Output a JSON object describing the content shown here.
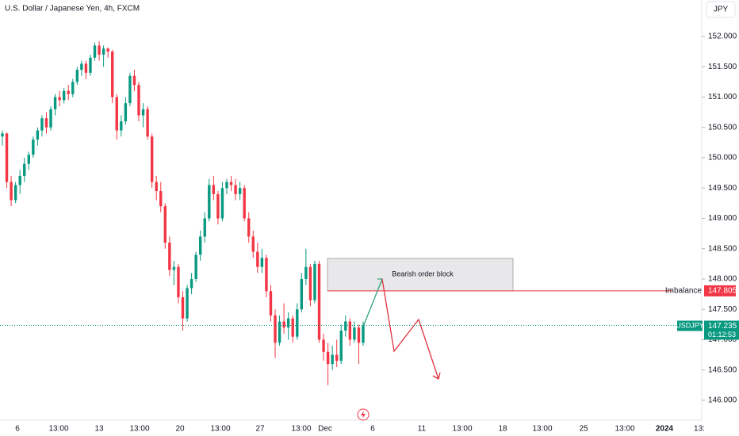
{
  "chart_data": {
    "type": "candlestick",
    "title": "U.S. Dollar / Japanese Yen, 4h, FXCM",
    "currency": "JPY",
    "symbol": "USDJPY",
    "up_color": "#089981",
    "down_color": "#f23645",
    "ylim": [
      145.673,
      152.601
    ],
    "yticks": [
      {
        "value": 146,
        "label": "146.000"
      },
      {
        "value": 146.5,
        "label": "146.500"
      },
      {
        "value": 147,
        "label": "147.000"
      },
      {
        "value": 147.5,
        "label": "147.500"
      },
      {
        "value": 148,
        "label": "148.000"
      },
      {
        "value": 148.5,
        "label": "148.500"
      },
      {
        "value": 149,
        "label": "149.000"
      },
      {
        "value": 149.5,
        "label": "149.500"
      },
      {
        "value": 150,
        "label": "150.000"
      },
      {
        "value": 150.5,
        "label": "150.500"
      },
      {
        "value": 151,
        "label": "151.000"
      },
      {
        "value": 151.5,
        "label": "151.500"
      },
      {
        "value": 152,
        "label": "152.000"
      }
    ],
    "xticks": [
      "6",
      "13:00",
      "13",
      "13:00",
      "20",
      "13:00",
      "27",
      "13:00",
      "Dec",
      "6",
      "11",
      "13:00",
      "18",
      "13:00",
      "25",
      "13:00",
      "2024",
      "13:"
    ],
    "candles": [
      [
        150.35,
        150.45,
        150.2,
        150.4
      ],
      [
        150.4,
        150.42,
        149.5,
        149.6
      ],
      [
        149.6,
        149.7,
        149.2,
        149.3
      ],
      [
        149.3,
        149.6,
        149.25,
        149.55
      ],
      [
        149.55,
        149.8,
        149.4,
        149.7
      ],
      [
        149.7,
        150.0,
        149.6,
        149.9
      ],
      [
        149.9,
        150.1,
        149.8,
        150.05
      ],
      [
        150.05,
        150.35,
        150.0,
        150.3
      ],
      [
        150.3,
        150.5,
        150.2,
        150.45
      ],
      [
        150.45,
        150.7,
        150.35,
        150.65
      ],
      [
        150.65,
        150.75,
        150.4,
        150.5
      ],
      [
        150.5,
        150.85,
        150.45,
        150.8
      ],
      [
        150.8,
        151.05,
        150.7,
        151.0
      ],
      [
        151.0,
        151.1,
        150.85,
        150.95
      ],
      [
        150.95,
        151.15,
        150.9,
        151.1
      ],
      [
        151.1,
        151.2,
        150.95,
        151.05
      ],
      [
        151.05,
        151.3,
        151.0,
        151.25
      ],
      [
        151.25,
        151.5,
        151.2,
        151.45
      ],
      [
        151.45,
        151.6,
        151.35,
        151.55
      ],
      [
        151.55,
        151.6,
        151.3,
        151.4
      ],
      [
        151.4,
        151.7,
        151.35,
        151.65
      ],
      [
        151.65,
        151.9,
        151.6,
        151.85
      ],
      [
        151.85,
        151.92,
        151.6,
        151.7
      ],
      [
        151.7,
        151.85,
        151.5,
        151.8
      ],
      [
        151.8,
        151.82,
        151.65,
        151.75
      ],
      [
        151.75,
        151.78,
        150.9,
        151.0
      ],
      [
        151.0,
        151.05,
        150.3,
        150.45
      ],
      [
        150.45,
        150.7,
        150.35,
        150.6
      ],
      [
        150.6,
        151.0,
        150.55,
        150.9
      ],
      [
        150.9,
        151.4,
        150.85,
        151.35
      ],
      [
        151.35,
        151.45,
        151.1,
        151.2
      ],
      [
        151.2,
        151.25,
        150.6,
        150.7
      ],
      [
        150.7,
        150.9,
        150.5,
        150.8
      ],
      [
        150.8,
        150.85,
        150.3,
        150.35
      ],
      [
        150.35,
        150.4,
        149.5,
        149.6
      ],
      [
        149.6,
        149.7,
        149.3,
        149.45
      ],
      [
        149.45,
        149.6,
        149.1,
        149.2
      ],
      [
        149.2,
        149.25,
        148.5,
        148.6
      ],
      [
        148.6,
        148.7,
        148.05,
        148.15
      ],
      [
        148.15,
        148.3,
        147.9,
        148.2
      ],
      [
        148.2,
        148.25,
        147.6,
        147.7
      ],
      [
        147.7,
        147.8,
        147.15,
        147.35
      ],
      [
        147.35,
        147.9,
        147.3,
        147.85
      ],
      [
        147.85,
        148.1,
        147.75,
        148.0
      ],
      [
        148.0,
        148.45,
        147.95,
        148.4
      ],
      [
        148.4,
        148.8,
        148.3,
        148.7
      ],
      [
        148.7,
        149.1,
        148.6,
        149.0
      ],
      [
        149.0,
        149.65,
        148.95,
        149.55
      ],
      [
        149.55,
        149.7,
        149.3,
        149.4
      ],
      [
        149.4,
        149.45,
        148.9,
        149.0
      ],
      [
        149.0,
        149.6,
        148.95,
        149.5
      ],
      [
        149.5,
        149.65,
        149.4,
        149.6
      ],
      [
        149.6,
        149.7,
        149.45,
        149.55
      ],
      [
        149.55,
        149.65,
        149.3,
        149.4
      ],
      [
        149.4,
        149.6,
        149.3,
        149.5
      ],
      [
        149.5,
        149.55,
        148.95,
        149.0
      ],
      [
        149.0,
        149.1,
        148.6,
        148.7
      ],
      [
        148.7,
        148.8,
        148.35,
        148.45
      ],
      [
        148.45,
        148.6,
        148.1,
        148.2
      ],
      [
        148.2,
        148.5,
        148.1,
        148.35
      ],
      [
        148.35,
        148.4,
        147.7,
        147.8
      ],
      [
        147.8,
        147.9,
        147.3,
        147.4
      ],
      [
        147.4,
        147.5,
        146.7,
        146.95
      ],
      [
        146.95,
        147.4,
        146.9,
        147.3
      ],
      [
        147.3,
        147.6,
        147.1,
        147.2
      ],
      [
        147.2,
        147.45,
        147.0,
        147.35
      ],
      [
        147.35,
        147.4,
        146.95,
        147.05
      ],
      [
        147.05,
        147.6,
        147.0,
        147.5
      ],
      [
        147.5,
        148.1,
        147.45,
        148.0
      ],
      [
        148.0,
        148.5,
        147.9,
        148.2
      ],
      [
        148.2,
        148.25,
        147.55,
        147.65
      ],
      [
        147.65,
        148.3,
        147.6,
        148.25
      ],
      [
        148.25,
        148.3,
        146.95,
        147.0
      ],
      [
        147.0,
        147.1,
        146.65,
        146.8
      ],
      [
        146.8,
        146.95,
        146.25,
        146.6
      ],
      [
        146.6,
        146.9,
        146.5,
        146.75
      ],
      [
        146.75,
        147.0,
        146.55,
        146.65
      ],
      [
        146.65,
        147.25,
        146.6,
        147.15
      ],
      [
        147.15,
        147.4,
        147.05,
        147.3
      ],
      [
        147.3,
        147.35,
        146.9,
        147.0
      ],
      [
        147.0,
        147.3,
        146.95,
        147.2
      ],
      [
        147.2,
        147.25,
        146.6,
        146.95
      ],
      [
        146.95,
        147.3,
        146.9,
        147.235
      ]
    ],
    "last_price": 147.235,
    "countdown": "01:12:53",
    "imbalance": {
      "label": "Imbalance",
      "value": 147.805
    },
    "order_block": {
      "label": "Bearish order block"
    }
  }
}
